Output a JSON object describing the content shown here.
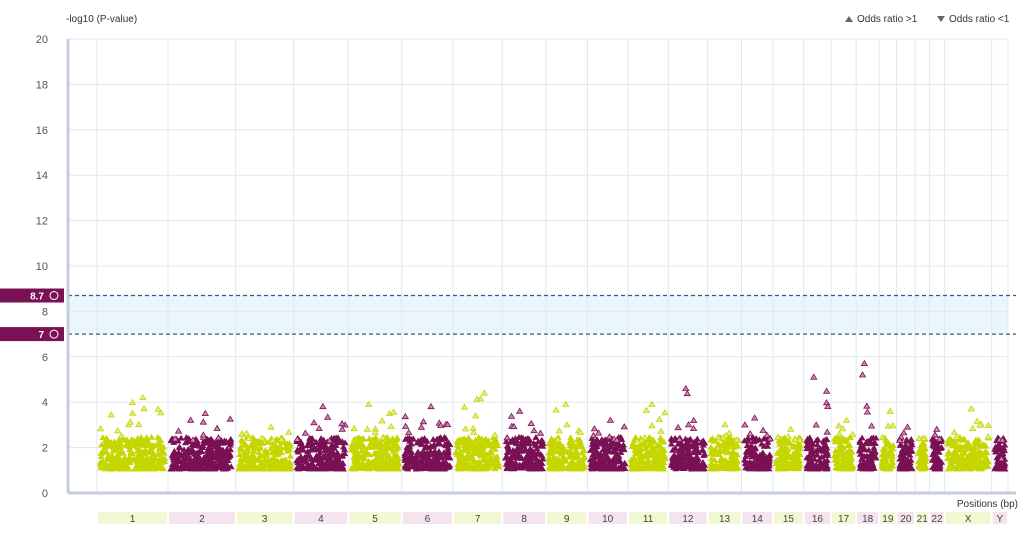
{
  "chart_data": {
    "type": "scatter",
    "title": "",
    "ylabel": "-log10 (P-value)",
    "xlabel": "Positions (bp)",
    "ylim": [
      0,
      20
    ],
    "yticks": [
      0,
      2,
      4,
      6,
      8,
      10,
      12,
      14,
      16,
      18,
      20
    ],
    "grid": true,
    "legend": {
      "placement": "top-right",
      "items": [
        {
          "symbol": "triangle-up",
          "label": "Odds ratio >1"
        },
        {
          "symbol": "triangle-down",
          "label": "Odds ratio <1"
        }
      ]
    },
    "thresholds": [
      {
        "value": 8.7,
        "label": "8.7"
      },
      {
        "value": 7,
        "label": "7"
      }
    ],
    "colors": {
      "odd": "#c5d600",
      "even": "#7a1154",
      "threshold": "#2e5d8a",
      "odd_band": "#f2f7d4",
      "even_band": "#f5e4ee",
      "band": "#eaf6fb",
      "axis": "#c5cde0"
    },
    "chromosomes": [
      {
        "name": "1",
        "weight": 65,
        "max": 4.2
      },
      {
        "name": "2",
        "weight": 62,
        "max": 3.5
      },
      {
        "name": "3",
        "weight": 53,
        "max": 2.9
      },
      {
        "name": "4",
        "weight": 50,
        "max": 3.8
      },
      {
        "name": "5",
        "weight": 49,
        "max": 3.9
      },
      {
        "name": "6",
        "weight": 47,
        "max": 3.8
      },
      {
        "name": "7",
        "weight": 45,
        "max": 4.4
      },
      {
        "name": "8",
        "weight": 40,
        "max": 3.6
      },
      {
        "name": "9",
        "weight": 38,
        "max": 3.9
      },
      {
        "name": "10",
        "weight": 37,
        "max": 3.2
      },
      {
        "name": "11",
        "weight": 37,
        "max": 3.9
      },
      {
        "name": "12",
        "weight": 36,
        "max": 4.6
      },
      {
        "name": "13",
        "weight": 31,
        "max": 3.0
      },
      {
        "name": "14",
        "weight": 29,
        "max": 3.3
      },
      {
        "name": "15",
        "weight": 28,
        "max": 2.8
      },
      {
        "name": "16",
        "weight": 25,
        "max": 5.1
      },
      {
        "name": "17",
        "weight": 23,
        "max": 3.2
      },
      {
        "name": "18",
        "weight": 21,
        "max": 5.7
      },
      {
        "name": "19",
        "weight": 16,
        "max": 3.6
      },
      {
        "name": "20",
        "weight": 17,
        "max": 2.9
      },
      {
        "name": "21",
        "weight": 13,
        "max": 2.4
      },
      {
        "name": "22",
        "weight": 14,
        "max": 2.8
      },
      {
        "name": "X",
        "weight": 43,
        "max": 3.7
      },
      {
        "name": "Y",
        "weight": 15,
        "max": 1.5
      }
    ]
  }
}
